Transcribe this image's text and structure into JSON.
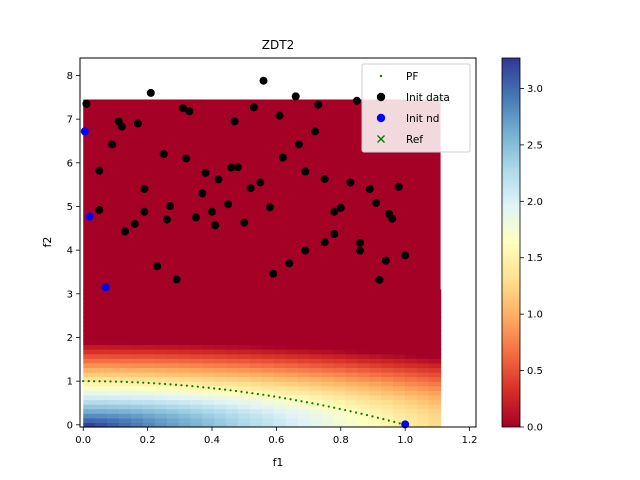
{
  "chart_data": {
    "type": "heatmap",
    "title": "ZDT2",
    "xlabel": "f1",
    "ylabel": "f2",
    "xlim": [
      -0.01,
      1.22
    ],
    "ylim": [
      -0.05,
      8.4
    ],
    "x_ticks": [
      "0.0",
      "0.2",
      "0.4",
      "0.6",
      "0.8",
      "1.0",
      "1.2"
    ],
    "x_tick_values": [
      0.0,
      0.2,
      0.4,
      0.6,
      0.8,
      1.0,
      1.2
    ],
    "y_ticks": [
      "0",
      "1",
      "2",
      "3",
      "4",
      "5",
      "6",
      "7",
      "8"
    ],
    "y_tick_values": [
      0,
      1,
      2,
      3,
      4,
      5,
      6,
      7,
      8
    ],
    "colorbar": {
      "min": 0.0,
      "max": 3.27,
      "ticks": [
        "0.0",
        "0.5",
        "1.0",
        "1.5",
        "2.0",
        "2.5",
        "3.0"
      ],
      "tick_values": [
        0.0,
        0.5,
        1.0,
        1.5,
        2.0,
        2.5,
        3.0
      ],
      "colormap": "RdYlBu"
    },
    "heatmap_extent": {
      "x": [
        0.0,
        1.11
      ],
      "y": [
        -0.05,
        7.45
      ]
    },
    "heatmap_cutoff_y": 3.1,
    "reference_point": [
      1.11,
      7.45
    ],
    "legend": {
      "placement": "upper-right",
      "entries": [
        "PF",
        "Init data",
        "Init nd",
        "Ref"
      ]
    },
    "series": [
      {
        "name": "PF",
        "type": "line-dots",
        "color": "#008000",
        "formula": "f2 = 1 - f1^2",
        "x_range": [
          0.0,
          1.0
        ],
        "points": 60
      },
      {
        "name": "Init data",
        "type": "scatter",
        "color": "#000000",
        "points": [
          [
            0.01,
            7.35
          ],
          [
            0.05,
            5.82
          ],
          [
            0.05,
            4.92
          ],
          [
            0.09,
            6.42
          ],
          [
            0.11,
            6.95
          ],
          [
            0.12,
            6.83
          ],
          [
            0.13,
            4.43
          ],
          [
            0.16,
            4.6
          ],
          [
            0.17,
            6.9
          ],
          [
            0.19,
            5.4
          ],
          [
            0.19,
            4.88
          ],
          [
            0.21,
            7.6
          ],
          [
            0.23,
            3.63
          ],
          [
            0.25,
            6.2
          ],
          [
            0.26,
            4.7
          ],
          [
            0.27,
            5.01
          ],
          [
            0.29,
            3.33
          ],
          [
            0.31,
            7.25
          ],
          [
            0.32,
            6.1
          ],
          [
            0.33,
            7.18
          ],
          [
            0.35,
            4.75
          ],
          [
            0.37,
            5.3
          ],
          [
            0.38,
            5.77
          ],
          [
            0.4,
            4.88
          ],
          [
            0.41,
            4.57
          ],
          [
            0.42,
            5.62
          ],
          [
            0.45,
            5.05
          ],
          [
            0.46,
            5.89
          ],
          [
            0.47,
            6.95
          ],
          [
            0.48,
            5.9
          ],
          [
            0.5,
            4.63
          ],
          [
            0.52,
            5.42
          ],
          [
            0.53,
            7.27
          ],
          [
            0.55,
            5.55
          ],
          [
            0.56,
            7.88
          ],
          [
            0.58,
            4.98
          ],
          [
            0.59,
            3.46
          ],
          [
            0.61,
            7.08
          ],
          [
            0.62,
            6.12
          ],
          [
            0.64,
            3.7
          ],
          [
            0.66,
            7.52
          ],
          [
            0.67,
            6.42
          ],
          [
            0.69,
            3.99
          ],
          [
            0.69,
            5.8
          ],
          [
            0.72,
            6.72
          ],
          [
            0.73,
            7.33
          ],
          [
            0.75,
            4.18
          ],
          [
            0.75,
            5.63
          ],
          [
            0.78,
            4.37
          ],
          [
            0.78,
            4.88
          ],
          [
            0.8,
            4.97
          ],
          [
            0.83,
            5.55
          ],
          [
            0.85,
            7.42
          ],
          [
            0.86,
            3.99
          ],
          [
            0.86,
            4.17
          ],
          [
            0.89,
            5.4
          ],
          [
            0.91,
            5.08
          ],
          [
            0.92,
            3.32
          ],
          [
            0.94,
            3.76
          ],
          [
            0.95,
            4.83
          ],
          [
            0.96,
            4.72
          ],
          [
            0.98,
            5.45
          ],
          [
            1.0,
            3.88
          ]
        ]
      },
      {
        "name": "Init nd",
        "type": "scatter",
        "color": "#0000ff",
        "points": [
          [
            0.005,
            6.72
          ],
          [
            0.02,
            4.77
          ],
          [
            0.07,
            3.15
          ],
          [
            1.0,
            0.01
          ]
        ]
      },
      {
        "name": "Ref",
        "type": "marker-x",
        "color": "#008000",
        "points": [
          [
            1.11,
            7.45
          ]
        ]
      }
    ]
  }
}
